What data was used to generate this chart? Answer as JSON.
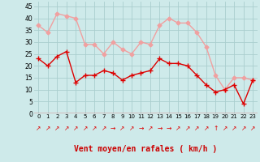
{
  "hours": [
    0,
    1,
    2,
    3,
    4,
    5,
    6,
    7,
    8,
    9,
    10,
    11,
    12,
    13,
    14,
    15,
    16,
    17,
    18,
    19,
    20,
    21,
    22,
    23
  ],
  "wind_mean": [
    23,
    20,
    24,
    26,
    13,
    16,
    16,
    18,
    17,
    14,
    16,
    17,
    18,
    23,
    21,
    21,
    20,
    16,
    12,
    9,
    10,
    12,
    4,
    14
  ],
  "wind_gust": [
    37,
    34,
    42,
    41,
    40,
    29,
    29,
    25,
    30,
    27,
    25,
    30,
    29,
    37,
    40,
    38,
    38,
    34,
    28,
    16,
    10,
    15,
    15,
    14
  ],
  "bg_color": "#ceeaea",
  "grid_color": "#aacece",
  "mean_color": "#dd0000",
  "gust_color": "#f0a0a0",
  "xlabel": "Vent moyen/en rafales ( km/h )",
  "xlabel_color": "#cc0000",
  "ylim": [
    0,
    47
  ],
  "yticks": [
    0,
    5,
    10,
    15,
    20,
    25,
    30,
    35,
    40,
    45
  ],
  "arrow_chars": [
    "↗",
    "↗",
    "↗",
    "↗",
    "↗",
    "↗",
    "↗",
    "↗",
    "→",
    "↗",
    "↗",
    "→",
    "↗",
    "→",
    "→",
    "↗",
    "↗",
    "↗",
    "↗",
    "↑",
    "↗",
    "↗",
    "↗",
    "↗"
  ],
  "marker_size": 2.5,
  "line_width": 1.0
}
